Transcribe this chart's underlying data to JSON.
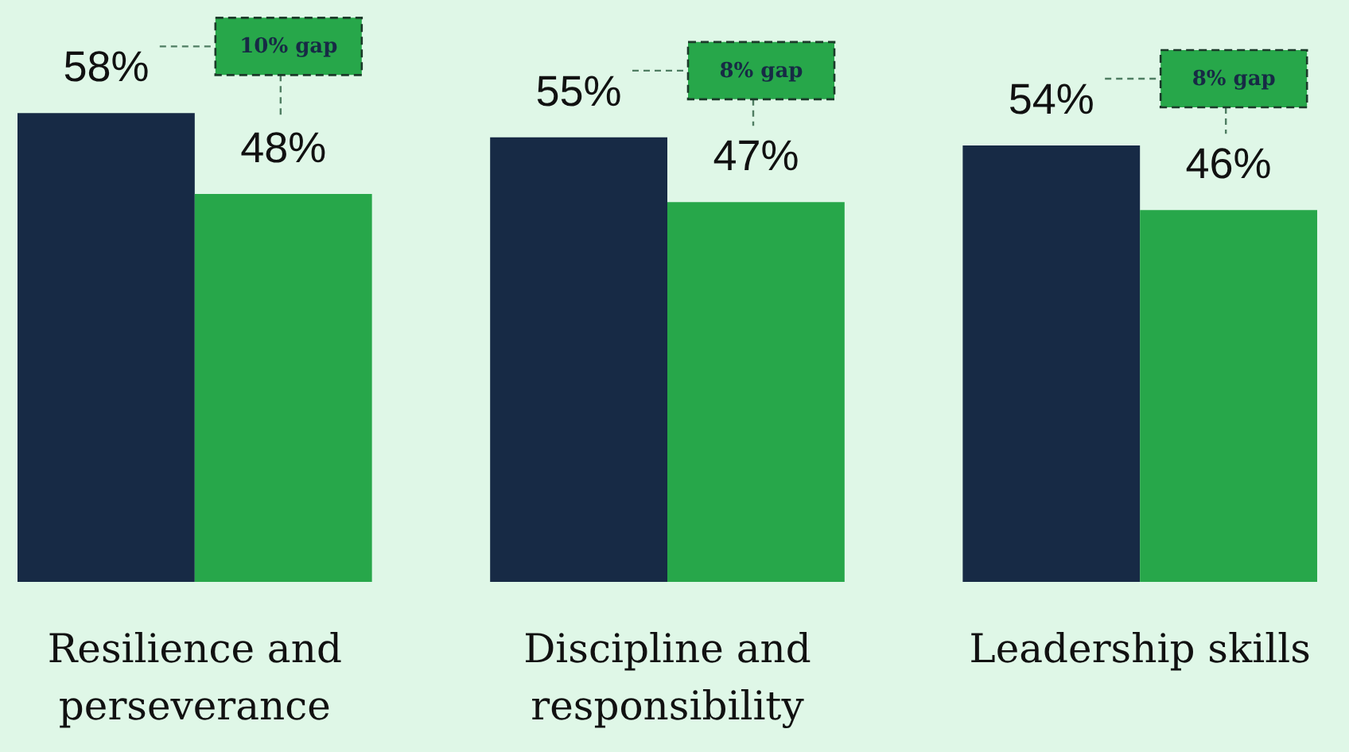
{
  "chart_data": {
    "type": "bar",
    "categories": [
      "Resilience and perseverance",
      "Discipline and responsibility",
      "Leadership skills"
    ],
    "series": [
      {
        "color": "#172a45",
        "values": [
          58,
          55,
          54
        ],
        "value_labels": [
          "58%",
          "55%",
          "54%"
        ]
      },
      {
        "color": "#27a74a",
        "values": [
          48,
          47,
          46
        ],
        "value_labels": [
          "48%",
          "47%",
          "46%"
        ]
      }
    ],
    "ylim": [
      0,
      72
    ],
    "tick_labels": "x",
    "annotations": [
      "10% gap",
      "8% gap",
      "8% gap"
    ]
  }
}
